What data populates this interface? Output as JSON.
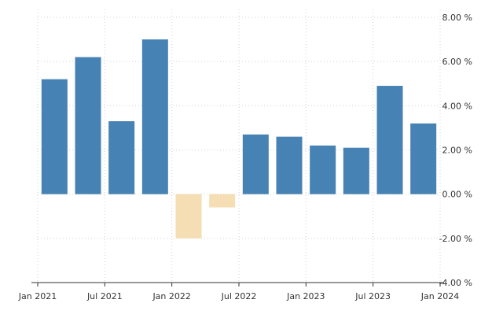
{
  "chart_data": {
    "type": "bar",
    "title": "",
    "xlabel": "",
    "ylabel": "",
    "categories": [
      "2021 Q1",
      "2021 Q2",
      "2021 Q3",
      "2021 Q4",
      "2022 Q1",
      "2022 Q2",
      "2022 Q3",
      "2022 Q4",
      "2023 Q1",
      "2023 Q2",
      "2023 Q3",
      "2023 Q4"
    ],
    "values": [
      5.2,
      6.2,
      3.3,
      7.0,
      -2.0,
      -0.6,
      2.7,
      2.6,
      2.2,
      2.1,
      4.9,
      3.2
    ],
    "ylim": [
      -4,
      8
    ],
    "y_ticks": [
      {
        "value": 8,
        "label": "8.00 %"
      },
      {
        "value": 6,
        "label": "6.00 %"
      },
      {
        "value": 4,
        "label": "4.00 %"
      },
      {
        "value": 2,
        "label": "2.00 %"
      },
      {
        "value": 0,
        "label": "0.00 %"
      },
      {
        "value": -2,
        "label": "-2.00 %"
      },
      {
        "value": -4,
        "label": "-4.00 %"
      }
    ],
    "x_ticks": [
      {
        "position": 0,
        "label": "Jan 2021"
      },
      {
        "position": 2,
        "label": "Jul 2021"
      },
      {
        "position": 4,
        "label": "Jan 2022"
      },
      {
        "position": 6,
        "label": "Jul 2022"
      },
      {
        "position": 8,
        "label": "Jan 2023"
      },
      {
        "position": 10,
        "label": "Jul 2023"
      },
      {
        "position": 12,
        "label": "Jan 2024"
      }
    ],
    "grid": true,
    "y_axis_side": "right",
    "colors": {
      "positive": "#4682b4",
      "negative": "#f5deb3",
      "grid": "#d0d0d0",
      "axis": "#333333"
    }
  }
}
